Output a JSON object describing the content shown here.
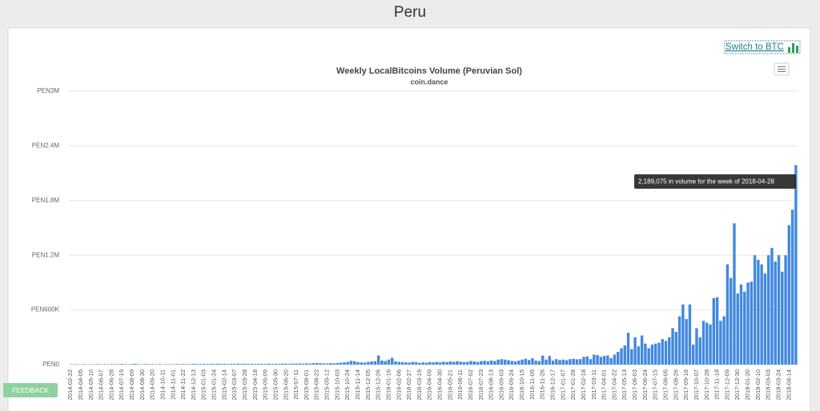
{
  "header": {
    "title": "Peru"
  },
  "switch_button": "Switch to BTC",
  "feedback_button": "FEEDBACK",
  "chart_data": {
    "type": "bar",
    "title": "Weekly LocalBitcoins Volume (Peruvian Sol)",
    "subtitle": "coin.dance",
    "tooltip": "2,189,075 in volume for the week of 2018-04-28",
    "color": "#4289de",
    "grid": true,
    "ylim": [
      0,
      3000000
    ],
    "yticks": [
      {
        "value": 0,
        "label": "PEN0"
      },
      {
        "value": 600000,
        "label": "PEN600K"
      },
      {
        "value": 1200000,
        "label": "PEN1.2M"
      },
      {
        "value": 1800000,
        "label": "PEN1.8M"
      },
      {
        "value": 2400000,
        "label": "PEN2.4M"
      },
      {
        "value": 3000000,
        "label": "PEN3M"
      }
    ],
    "categories": [
      "2014-02-22",
      null,
      null,
      "2014-04-05",
      null,
      null,
      "2014-05-10",
      null,
      null,
      "2014-06-07",
      null,
      null,
      "2014-06-28",
      null,
      null,
      "2014-07-19",
      null,
      null,
      "2014-08-09",
      null,
      null,
      "2014-08-30",
      null,
      null,
      "2014-09-20",
      null,
      null,
      "2014-10-11",
      null,
      null,
      "2014-11-01",
      null,
      null,
      "2014-11-22",
      null,
      null,
      "2014-12-13",
      null,
      null,
      "2015-01-03",
      null,
      null,
      "2015-01-24",
      null,
      null,
      "2015-02-14",
      null,
      null,
      "2015-03-07",
      null,
      null,
      "2015-03-28",
      null,
      null,
      "2015-04-18",
      null,
      null,
      "2015-05-09",
      null,
      null,
      "2015-05-30",
      null,
      null,
      "2015-06-20",
      null,
      null,
      "2015-07-11",
      null,
      null,
      "2015-08-01",
      null,
      null,
      "2015-08-22",
      null,
      null,
      "2015-09-12",
      null,
      null,
      "2015-10-03",
      null,
      null,
      "2015-10-24",
      null,
      null,
      "2015-11-14",
      null,
      null,
      "2015-12-05",
      null,
      null,
      "2015-12-26",
      null,
      null,
      "2016-01-16",
      null,
      null,
      "2016-02-06",
      null,
      null,
      "2016-02-27",
      null,
      null,
      "2016-03-19",
      null,
      null,
      "2016-04-09",
      null,
      null,
      "2016-04-30",
      null,
      null,
      "2016-05-21",
      null,
      null,
      "2016-06-11",
      null,
      null,
      "2016-07-02",
      null,
      null,
      "2016-07-23",
      null,
      null,
      "2016-08-13",
      null,
      null,
      "2016-09-03",
      null,
      null,
      "2016-09-24",
      null,
      null,
      "2016-10-15",
      null,
      null,
      "2016-11-05",
      null,
      null,
      "2016-11-26",
      null,
      null,
      "2016-12-17",
      null,
      null,
      "2017-01-07",
      null,
      null,
      "2017-01-28",
      null,
      null,
      "2017-02-18",
      null,
      null,
      "2017-03-11",
      null,
      null,
      "2017-04-01",
      null,
      null,
      "2017-04-22",
      null,
      null,
      "2017-05-13",
      null,
      null,
      "2017-06-03",
      null,
      null,
      "2017-06-24",
      null,
      null,
      "2017-07-15",
      null,
      null,
      "2017-08-05",
      null,
      null,
      "2017-08-26",
      null,
      null,
      "2017-09-16",
      null,
      null,
      "2017-10-07",
      null,
      null,
      "2017-10-28",
      null,
      null,
      "2017-11-18",
      null,
      null,
      "2017-12-09",
      null,
      null,
      "2017-12-30",
      null,
      null,
      "2018-01-20",
      null,
      null,
      "2018-02-10",
      null,
      null,
      "2018-03-03",
      null,
      null,
      "2018-03-24",
      null,
      null,
      "2018-04-14",
      null,
      null
    ],
    "values": [
      3000,
      2000,
      4000,
      2000,
      5000,
      3000,
      4000,
      3000,
      6000,
      3000,
      5000,
      4000,
      6000,
      4000,
      5000,
      8000,
      5000,
      4000,
      6000,
      9000,
      5000,
      4000,
      7000,
      5000,
      5000,
      4000,
      6000,
      3000,
      5000,
      4000,
      4000,
      6000,
      5000,
      7000,
      5000,
      6000,
      9000,
      6000,
      7000,
      8000,
      6000,
      9000,
      7000,
      10000,
      8000,
      9000,
      7000,
      8000,
      8000,
      11000,
      9000,
      10000,
      8000,
      9000,
      7000,
      9000,
      8000,
      8000,
      10000,
      7000,
      9000,
      8000,
      11000,
      10000,
      9000,
      12000,
      11000,
      13000,
      10000,
      14000,
      12000,
      16000,
      18000,
      15000,
      13000,
      12000,
      16000,
      14000,
      18000,
      22000,
      25000,
      30000,
      42000,
      38000,
      28000,
      24000,
      22000,
      30000,
      35000,
      38000,
      100000,
      45000,
      40000,
      55000,
      75000,
      35000,
      30000,
      28000,
      25000,
      22000,
      30000,
      26000,
      20000,
      25000,
      22000,
      28000,
      24000,
      30000,
      25000,
      32000,
      28000,
      35000,
      30000,
      38000,
      32000,
      28000,
      30000,
      40000,
      35000,
      30000,
      38000,
      42000,
      36000,
      45000,
      40000,
      55000,
      60000,
      55000,
      48000,
      40000,
      35000,
      45000,
      55000,
      65000,
      50000,
      70000,
      45000,
      40000,
      100000,
      55000,
      95000,
      45000,
      60000,
      50000,
      55000,
      48000,
      60000,
      65000,
      58000,
      60000,
      85000,
      90000,
      60000,
      110000,
      105000,
      85000,
      95000,
      100000,
      70000,
      110000,
      140000,
      180000,
      210000,
      350000,
      170000,
      300000,
      200000,
      320000,
      230000,
      180000,
      220000,
      230000,
      240000,
      280000,
      260000,
      300000,
      400000,
      360000,
      530000,
      660000,
      500000,
      660000,
      220000,
      400000,
      300000,
      480000,
      460000,
      440000,
      730000,
      740000,
      480000,
      530000,
      1100000,
      950000,
      1550000,
      780000,
      880000,
      800000,
      900000,
      910000,
      1200000,
      1150000,
      1100000,
      1000000,
      1200000,
      1280000,
      1130000,
      1200000,
      1020000,
      1200000,
      1530000,
      1700000,
      2189075
    ]
  }
}
